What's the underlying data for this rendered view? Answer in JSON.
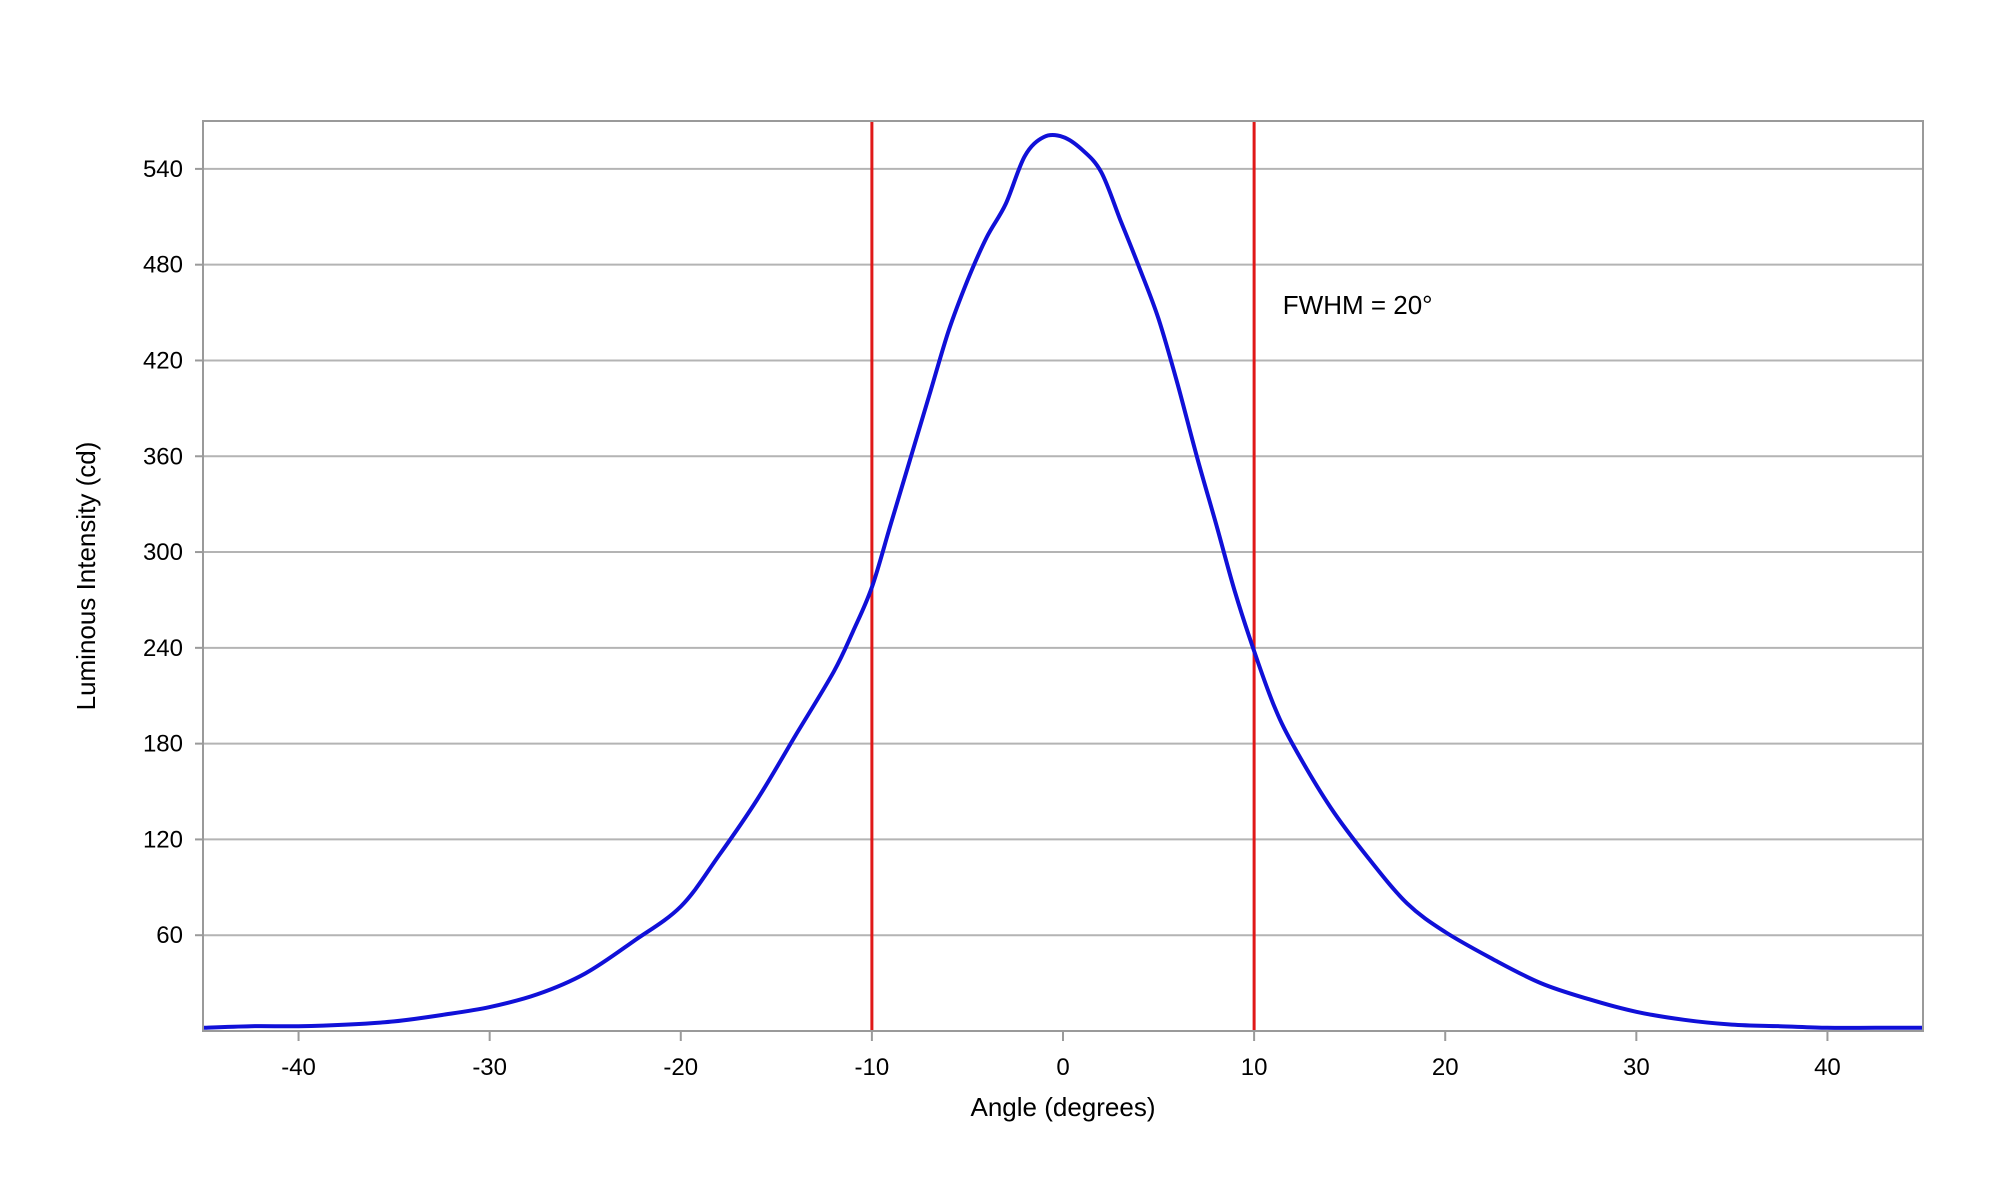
{
  "chart_data": {
    "type": "line",
    "title": "",
    "xlabel": "Angle (degrees)",
    "ylabel": "Luminous Intensity (cd)",
    "xlim": [
      -45,
      45
    ],
    "ylim": [
      0,
      570
    ],
    "x_ticks": [
      -40,
      -30,
      -20,
      -10,
      0,
      10,
      20,
      30,
      40
    ],
    "x_tick_labels": [
      "-40",
      "-30",
      "-20",
      "-10",
      "0",
      "10",
      "20",
      "30",
      "40"
    ],
    "y_ticks": [
      60,
      120,
      180,
      240,
      300,
      360,
      420,
      480,
      540
    ],
    "y_tick_labels": [
      "60",
      "120",
      "180",
      "240",
      "300",
      "360",
      "420",
      "480",
      "540"
    ],
    "grid": "horizontal",
    "legend": "none",
    "colors": {
      "curve": "#1010d8",
      "markers": "#e01818",
      "grid": "#b4b4b4",
      "frame": "#9a9a9a"
    },
    "series": [
      {
        "x": [
          -45,
          -42.5,
          -40,
          -37.5,
          -35,
          -32.5,
          -30,
          -27.5,
          -25,
          -22.5,
          -20,
          -18,
          -16,
          -14,
          -12,
          -11,
          -10,
          -9,
          -8,
          -7,
          -6,
          -5,
          -4,
          -3,
          -2,
          -1,
          0,
          1,
          2,
          3,
          4,
          5,
          6,
          7,
          8,
          9,
          10,
          11,
          12,
          14,
          16,
          18,
          20,
          22.5,
          25,
          27.5,
          30,
          32.5,
          35,
          37.5,
          40,
          42.5,
          45
        ],
        "y": [
          2,
          3,
          3,
          4,
          6,
          10,
          15,
          23,
          36,
          56,
          78,
          110,
          145,
          185,
          225,
          250,
          278,
          318,
          358,
          398,
          438,
          470,
          497,
          518,
          548,
          560,
          560,
          552,
          538,
          508,
          478,
          446,
          405,
          360,
          318,
          275,
          238,
          205,
          180,
          140,
          108,
          80,
          62,
          45,
          30,
          20,
          12,
          7,
          4,
          3,
          2,
          2,
          2
        ]
      }
    ],
    "vertical_lines": [
      {
        "x": -10
      },
      {
        "x": 10
      }
    ],
    "annotations": [
      {
        "text": "FWHM = 20°",
        "x": 11.5,
        "y": 449
      }
    ]
  }
}
